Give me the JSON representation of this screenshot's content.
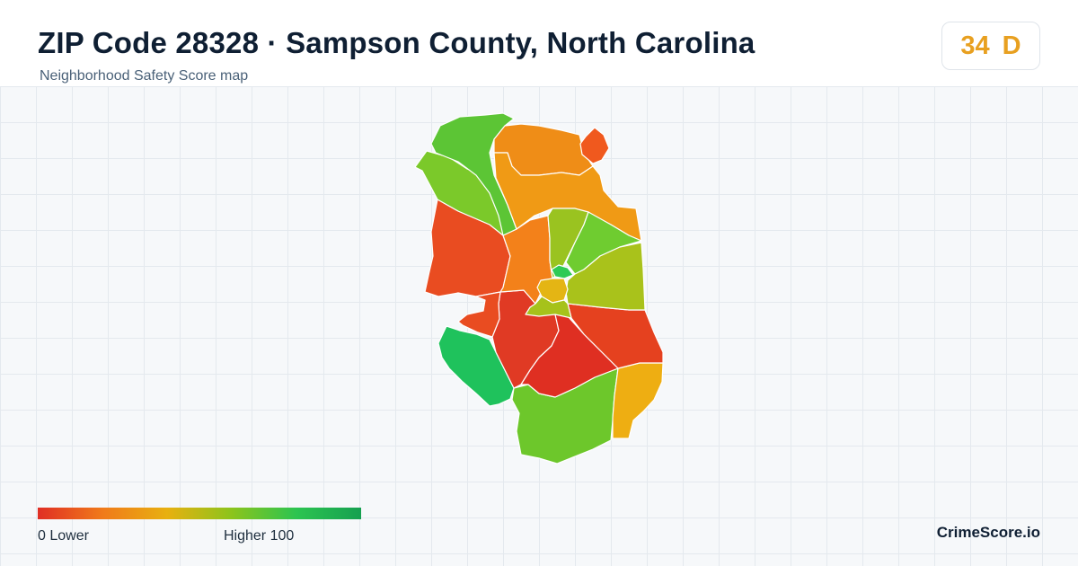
{
  "header": {
    "title": "ZIP Code 28328 · Sampson County, North Carolina",
    "subtitle": "Neighborhood Safety Score map"
  },
  "score_badge": {
    "score": "34",
    "grade": "D",
    "color": "#e8a020"
  },
  "legend": {
    "min_label": "0  Lower",
    "max_label": "Higher  100",
    "gradient_colors": [
      "#e02e24",
      "#f07a1a",
      "#e8b010",
      "#8cc41c",
      "#2cc450",
      "#16a050"
    ]
  },
  "map": {
    "regions": [
      {
        "name": "north-west",
        "color": "#5cc535"
      },
      {
        "name": "north-center",
        "color": "#ef8d17"
      },
      {
        "name": "north-east-small",
        "color": "#f0591e"
      },
      {
        "name": "north-ridge",
        "color": "#f09a15"
      },
      {
        "name": "north-west-strip",
        "color": "#7bc92a"
      },
      {
        "name": "west",
        "color": "#e94c21"
      },
      {
        "name": "center-west",
        "color": "#f3811a"
      },
      {
        "name": "center-north",
        "color": "#9ac320"
      },
      {
        "name": "center-north-east",
        "color": "#6fcc30"
      },
      {
        "name": "east",
        "color": "#a9c21b"
      },
      {
        "name": "town-green",
        "color": "#2fca55"
      },
      {
        "name": "town-south",
        "color": "#a6c21b"
      },
      {
        "name": "town-core",
        "color": "#e4b514"
      },
      {
        "name": "south-center-west",
        "color": "#e03a24"
      },
      {
        "name": "south-center",
        "color": "#df2f22"
      },
      {
        "name": "south-east",
        "color": "#e5411f"
      },
      {
        "name": "south-west",
        "color": "#1fc25c"
      },
      {
        "name": "south",
        "color": "#6dc72b"
      },
      {
        "name": "south-east-lower",
        "color": "#eeae12"
      }
    ]
  },
  "brand": {
    "name": "CrimeScore.io"
  }
}
